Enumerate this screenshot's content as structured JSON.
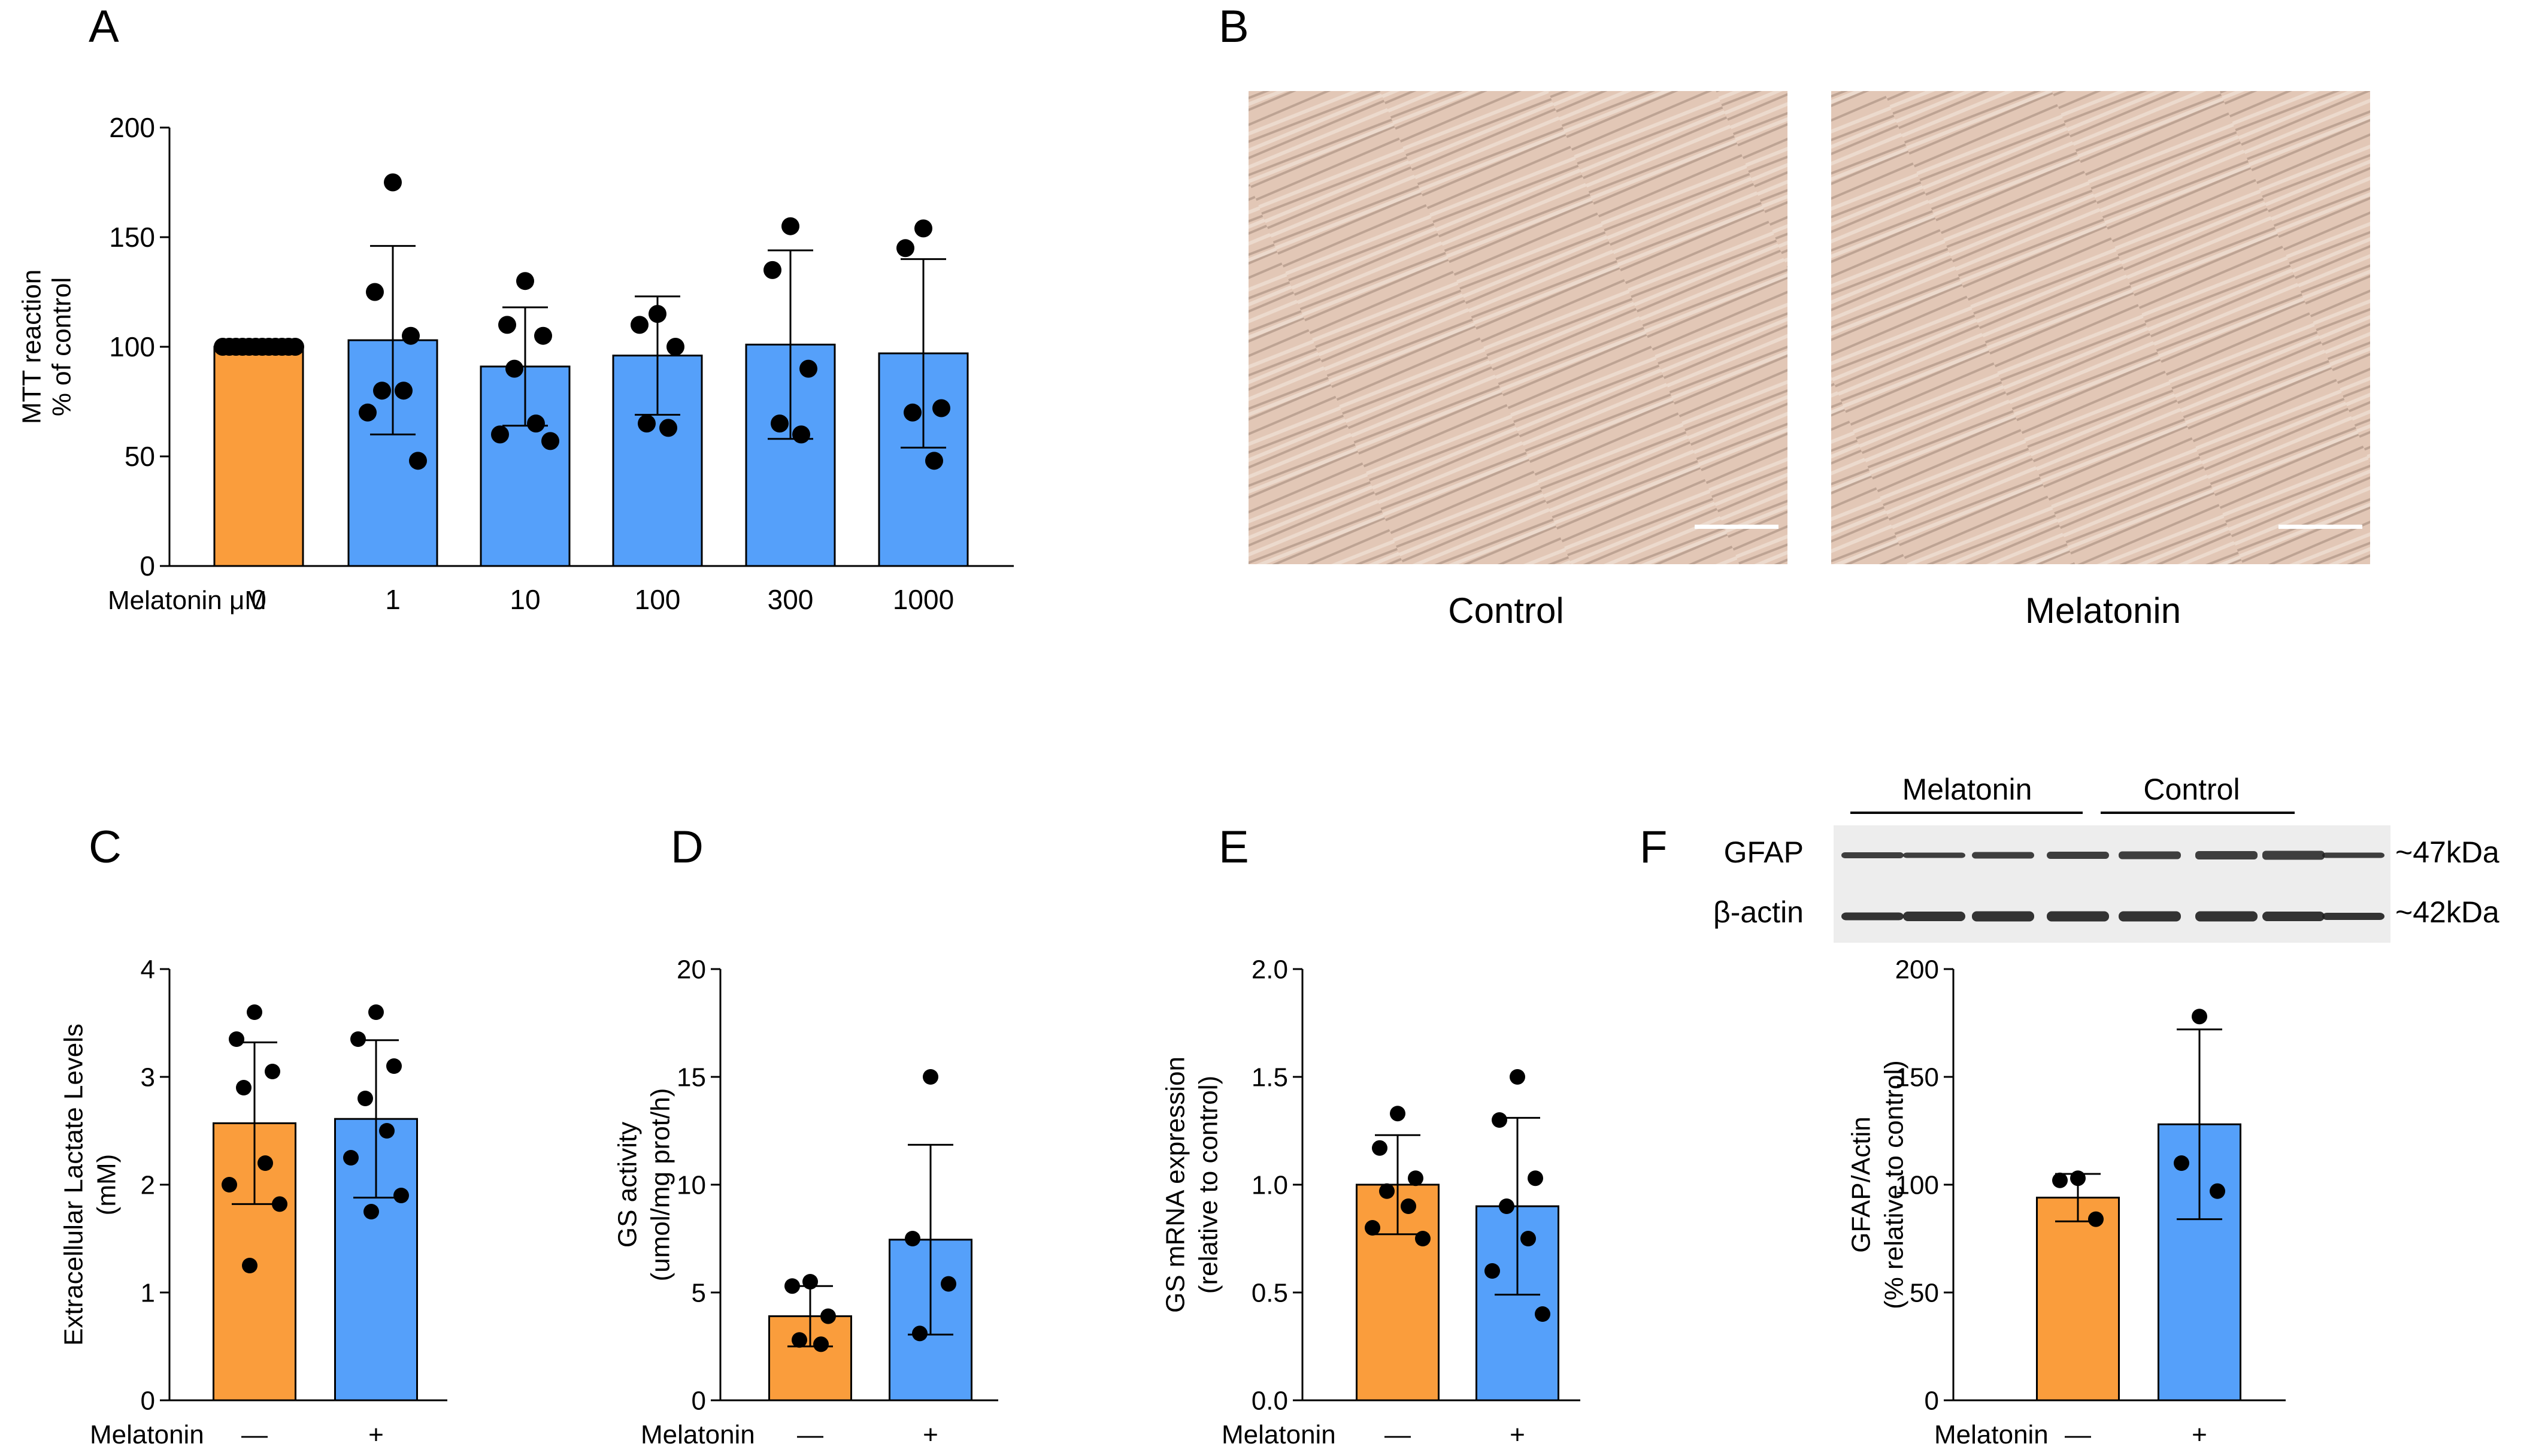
{
  "colors": {
    "orange": "#FA9D3C",
    "blue": "#55A0FA",
    "axis": "#000000",
    "micrograph": "#E2C7B6",
    "blot_bg": "#EDEDED",
    "band": "#1E1E1E"
  },
  "panels": {
    "A": {
      "letter": "A"
    },
    "B": {
      "letter": "B",
      "label_left": "Control",
      "label_right": "Melatonin"
    },
    "C": {
      "letter": "C"
    },
    "D": {
      "letter": "D"
    },
    "E": {
      "letter": "E"
    },
    "F": {
      "letter": "F",
      "group_melatonin": "Melatonin",
      "group_control": "Control",
      "row1": "GFAP",
      "row2": "β-actin",
      "mw1": "~47kDa",
      "mw2": "~42kDa"
    }
  },
  "chart_data": [
    {
      "panel": "A",
      "type": "bar",
      "ylabel": [
        "MTT reaction",
        "% of control"
      ],
      "xlabel": "Melatonin μM",
      "ylim": [
        0,
        200
      ],
      "yticks": [
        0,
        50,
        100,
        150,
        200
      ],
      "categories": [
        "0",
        "1",
        "10",
        "100",
        "300",
        "1000"
      ],
      "values": [
        100,
        103,
        91,
        96,
        101,
        97
      ],
      "sd": [
        0,
        43,
        27,
        27,
        43,
        43
      ],
      "colors": [
        "orange",
        "blue",
        "blue",
        "blue",
        "blue",
        "blue"
      ],
      "points": [
        [
          100,
          100,
          100,
          100,
          100,
          100,
          100,
          100,
          100,
          100,
          100,
          100
        ],
        [
          175,
          125,
          105,
          80,
          80,
          70,
          48
        ],
        [
          130,
          110,
          105,
          90,
          65,
          60,
          57
        ],
        [
          115,
          110,
          100,
          65,
          63
        ],
        [
          155,
          135,
          90,
          65,
          60
        ],
        [
          154,
          145,
          72,
          70,
          48
        ]
      ]
    },
    {
      "panel": "C",
      "type": "bar",
      "ylabel": [
        "Extracellular Lactate Levels",
        "(mM)"
      ],
      "xlabel": "Melatonin",
      "ylim": [
        0,
        4
      ],
      "yticks": [
        0,
        1,
        2,
        3,
        4
      ],
      "categories": [
        "—",
        "+"
      ],
      "values": [
        2.57,
        2.61
      ],
      "sd": [
        0.75,
        0.73
      ],
      "colors": [
        "orange",
        "blue"
      ],
      "points": [
        [
          3.6,
          3.35,
          3.05,
          2.9,
          2.2,
          2.0,
          1.82,
          1.25
        ],
        [
          3.6,
          3.35,
          3.1,
          2.8,
          2.5,
          2.25,
          1.9,
          1.75
        ]
      ]
    },
    {
      "panel": "D",
      "type": "bar",
      "ylabel": [
        "GS activity",
        "(umol/mg prot/h)"
      ],
      "xlabel": "Melatonin",
      "ylim": [
        0,
        20
      ],
      "yticks": [
        0,
        5,
        10,
        15,
        20
      ],
      "categories": [
        "—",
        "+"
      ],
      "values": [
        3.9,
        7.45
      ],
      "sd": [
        1.4,
        4.4
      ],
      "colors": [
        "orange",
        "blue"
      ],
      "points": [
        [
          5.5,
          5.3,
          3.9,
          2.8,
          2.6
        ],
        [
          15.0,
          7.5,
          5.4,
          3.1
        ]
      ]
    },
    {
      "panel": "E",
      "type": "bar",
      "ylabel": [
        "GS mRNA expression",
        "(relative to control)"
      ],
      "xlabel": "Melatonin",
      "ylim": [
        0,
        2.0
      ],
      "yticks": [
        "0.0",
        "0.5",
        "1.0",
        "1.5",
        "2.0"
      ],
      "categories": [
        "—",
        "+"
      ],
      "values": [
        1.0,
        0.9
      ],
      "sd": [
        0.23,
        0.41
      ],
      "colors": [
        "orange",
        "blue"
      ],
      "points": [
        [
          1.33,
          1.17,
          1.03,
          0.97,
          0.9,
          0.8,
          0.75
        ],
        [
          1.5,
          1.3,
          1.03,
          0.9,
          0.75,
          0.6,
          0.4
        ]
      ]
    },
    {
      "panel": "F",
      "type": "bar",
      "ylabel": [
        "GFAP/Actin",
        "(% relative to control)"
      ],
      "xlabel": "Melatonin",
      "ylim": [
        0,
        200
      ],
      "yticks": [
        0,
        50,
        100,
        150,
        200
      ],
      "categories": [
        "—",
        "+"
      ],
      "values": [
        94,
        128
      ],
      "sd": [
        11,
        44
      ],
      "colors": [
        "orange",
        "blue"
      ],
      "points": [
        [
          103,
          102,
          84
        ],
        [
          178,
          110,
          97
        ]
      ]
    }
  ]
}
